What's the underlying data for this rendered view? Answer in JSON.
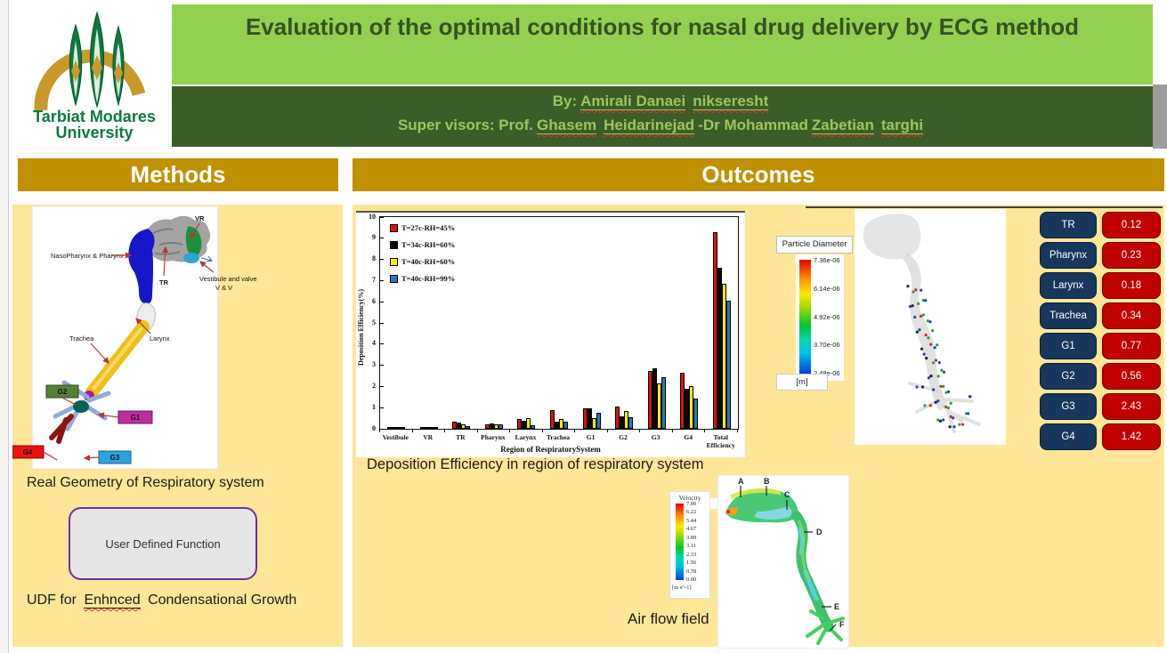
{
  "header": {
    "logo": {
      "line1": "Tarbiat Modares",
      "line2": "University"
    },
    "title": "Evaluation of the optimal conditions for nasal drug delivery by ECG method",
    "by_prefix": "By:",
    "by_name": "Amirali Danaei",
    "by_surname": "nikseresht",
    "sup_prefix": "Super visors: Prof.",
    "sup_name1": "Ghasem",
    "sup_name2": "Heidarinejad",
    "sup_mid": "-Dr Mohammad",
    "sup_name3": "Zabetian",
    "sup_name4": "targhi"
  },
  "sections": {
    "methods": "Methods",
    "outcomes": "Outcomes"
  },
  "methods": {
    "figure_labels": {
      "vr": "VR",
      "nasopharynx": "NasoPharynx & Pharynx",
      "tr": "TR",
      "vestibule1": "Vestibule and valve",
      "vestibule2": "V & V",
      "trachea": "Trachea",
      "larynx": "Larynx",
      "g1": "G1",
      "g2": "G2",
      "g3": "G3",
      "g4": "G4"
    },
    "caption1": "Real Geometry of Respiratory system",
    "udf_box": "User Defined Function",
    "caption2_prefix": "UDF for",
    "caption2_misspelled": "Enhnced",
    "caption2_suffix": "Condensational Growth"
  },
  "outcomes": {
    "chart_caption": "Deposition Efficiency in region of respiratory system",
    "airflow_caption": "Air flow field",
    "particle_legend": {
      "title": "Particle Diameter",
      "unit": "[m]",
      "ticks": [
        "7.36e-06",
        "6.14e-06",
        "4.92e-06",
        "3.70e-06",
        "2.48e-06"
      ]
    },
    "velocity_legend": {
      "title": "Velocity",
      "unit": "[m s^-1]",
      "ticks": [
        "7.00",
        "6.22",
        "5.44",
        "4.67",
        "3.89",
        "3.11",
        "2.33",
        "1.56",
        "0.78",
        "0.00"
      ]
    },
    "airflow_labels": [
      "A",
      "B",
      "C",
      "D",
      "E",
      "F"
    ],
    "table": {
      "rows": [
        {
          "label": "TR",
          "value": "0.12"
        },
        {
          "label": "Pharynx",
          "value": "0.23"
        },
        {
          "label": "Larynx",
          "value": "0.18"
        },
        {
          "label": "Trachea",
          "value": "0.34"
        },
        {
          "label": "G1",
          "value": "0.77"
        },
        {
          "label": "G2",
          "value": "0.56"
        },
        {
          "label": "G3",
          "value": "2.43"
        },
        {
          "label": "G4",
          "value": "1.42"
        }
      ]
    }
  },
  "chart_data": {
    "type": "bar",
    "title": "",
    "xlabel": "Region of RespiratorySystem",
    "ylabel": "Deposition Efficiency(%)",
    "ylim": [
      0,
      10
    ],
    "yticks": [
      0,
      1,
      2,
      3,
      4,
      5,
      6,
      7,
      8,
      9,
      10
    ],
    "legend_position": "upper-left",
    "grid": false,
    "categories": [
      "Vestibule",
      "VR",
      "TR",
      "Pharynx",
      "Larynx",
      "Trachea",
      "G1",
      "G2",
      "G3",
      "G4",
      "Total Efficiency"
    ],
    "series": [
      {
        "name": "T=27c-RH=45%",
        "color": "#e01010",
        "values": [
          0.02,
          0.02,
          0.33,
          0.22,
          0.45,
          0.88,
          0.95,
          1.05,
          2.75,
          2.65,
          9.3
        ]
      },
      {
        "name": "T=34c-RH=60%",
        "color": "#0a0a0a",
        "values": [
          0.02,
          0.02,
          0.28,
          0.25,
          0.38,
          0.35,
          0.95,
          0.58,
          2.87,
          1.9,
          7.6
        ]
      },
      {
        "name": "T=40c-RH=60%",
        "color": "#ffee00",
        "values": [
          0.01,
          0.01,
          0.2,
          0.2,
          0.5,
          0.45,
          0.5,
          0.85,
          2.13,
          2.0,
          6.85
        ]
      },
      {
        "name": "T=40c-RH=99%",
        "color": "#2878be",
        "values": [
          0.01,
          0.01,
          0.12,
          0.23,
          0.18,
          0.34,
          0.77,
          0.56,
          2.43,
          1.42,
          6.05
        ]
      }
    ]
  }
}
